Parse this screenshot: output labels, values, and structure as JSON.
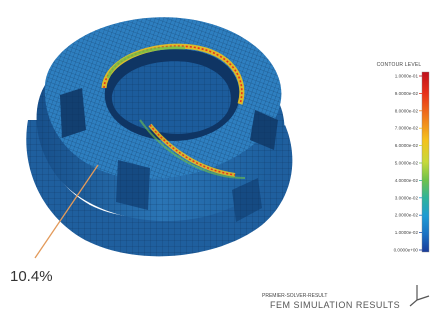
{
  "figure": {
    "callout_label": "10.4%",
    "legend": {
      "title": "CONTOUR LEVEL",
      "levels": [
        "1.0000e-01",
        "9.0000e-02",
        "8.0000e-02",
        "7.0000e-02",
        "6.0000e-02",
        "5.0000e-02",
        "4.0000e-02",
        "3.0000e-02",
        "2.0000e-02",
        "1.0000e-02",
        "0.0000e+00"
      ],
      "colors": [
        "#c0111c",
        "#e8321a",
        "#f07a1c",
        "#f4c21d",
        "#c7d93a",
        "#6fc24a",
        "#2fb39b",
        "#1f9bd4",
        "#1b72c4",
        "#1c4fae",
        "#1a3b9a"
      ]
    },
    "footer": {
      "line1": "PREMIER-SOLVER-RESULT",
      "line2": "FEM SIMULATION RESULTS"
    }
  }
}
